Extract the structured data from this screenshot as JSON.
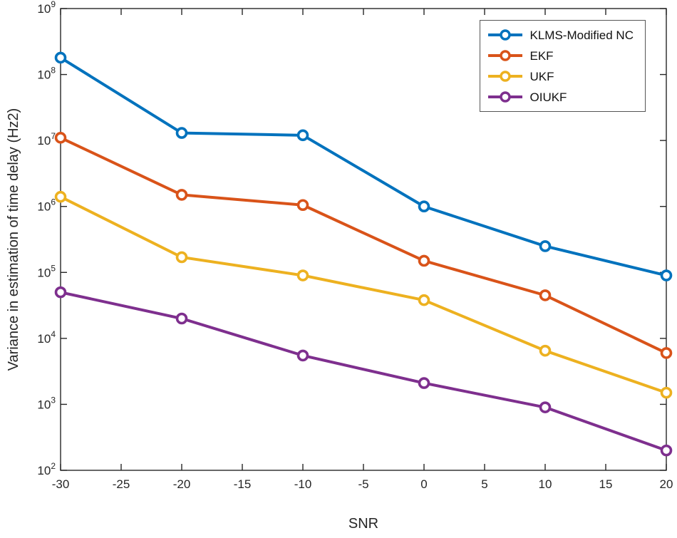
{
  "chart_data": {
    "type": "line",
    "title": "",
    "xlabel": "SNR",
    "ylabel": "Variance in estimation of time delay (Hz2)",
    "xlim": [
      -30,
      20
    ],
    "ylim": [
      100,
      1000000000
    ],
    "yscale": "log",
    "grid": false,
    "legend_position": "top-right",
    "xticks": [
      -30,
      -25,
      -20,
      -15,
      -10,
      -5,
      0,
      5,
      10,
      15,
      20
    ],
    "ytick_exponents": [
      2,
      3,
      4,
      5,
      6,
      7,
      8,
      9
    ],
    "x": [
      -30,
      -20,
      -10,
      0,
      10,
      20
    ],
    "series": [
      {
        "name": "KLMS-Modified NC",
        "color": "#0072BD",
        "values": [
          180000000,
          13000000,
          12000000,
          1000000,
          250000,
          90000
        ]
      },
      {
        "name": "EKF",
        "color": "#D95319",
        "values": [
          11000000,
          1500000,
          1050000,
          150000,
          45000,
          6000
        ]
      },
      {
        "name": "UKF",
        "color": "#EDB120",
        "values": [
          1400000,
          170000,
          90000,
          38000,
          6500,
          1500
        ]
      },
      {
        "name": "OIUKF",
        "color": "#7E2F8E",
        "values": [
          50000,
          20000,
          5500,
          2100,
          900,
          200
        ]
      }
    ]
  },
  "axis": {
    "color": "#262626",
    "background": "#ffffff"
  }
}
